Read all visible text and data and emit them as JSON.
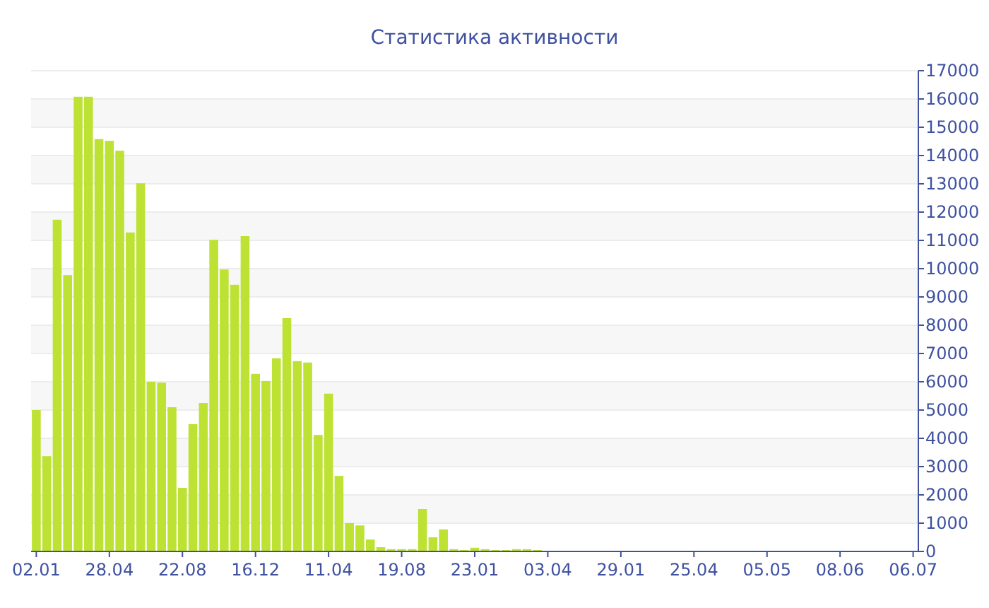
{
  "chart_data": {
    "type": "bar",
    "title": "Статистика активности",
    "categories": [
      "02.01",
      null,
      null,
      null,
      null,
      null,
      null,
      "28.04",
      null,
      null,
      null,
      null,
      null,
      null,
      "22.08",
      null,
      null,
      null,
      null,
      null,
      null,
      "16.12",
      null,
      null,
      null,
      null,
      null,
      null,
      "11.04",
      null,
      null,
      null,
      null,
      null,
      null,
      "19.08",
      null,
      null,
      null,
      null,
      null,
      null,
      "23.01",
      null,
      null,
      null,
      null,
      null,
      null,
      "03.04",
      null,
      null,
      null,
      null,
      null,
      null,
      "29.01",
      null,
      null,
      null,
      null,
      null,
      null,
      "25.04",
      null,
      null,
      null,
      null,
      null,
      null,
      "05.05",
      null,
      null,
      null,
      null,
      null,
      null,
      "08.06",
      null,
      null,
      null,
      null,
      null,
      null,
      "06.07"
    ],
    "values": [
      5000,
      3370,
      11730,
      9770,
      16080,
      16080,
      14580,
      14520,
      14170,
      11280,
      13020,
      6000,
      5970,
      5100,
      2250,
      4500,
      5250,
      11020,
      9970,
      9430,
      11150,
      6280,
      6030,
      6830,
      8250,
      6730,
      6680,
      4120,
      5580,
      2670,
      1000,
      920,
      420,
      150,
      80,
      80,
      80,
      1500,
      500,
      780,
      80,
      50,
      130,
      80,
      50,
      50,
      80,
      80,
      50,
      20,
      20,
      20,
      20,
      20,
      20,
      20,
      20,
      10,
      10,
      10,
      10,
      10,
      10,
      10,
      10,
      10,
      10,
      10,
      10,
      10,
      10,
      10,
      10,
      10,
      10,
      10,
      10,
      10,
      10,
      10,
      10,
      10,
      10,
      10,
      10
    ],
    "color": "#bde233",
    "ylim": [
      0,
      17000
    ],
    "yticks": [
      0,
      1000,
      2000,
      3000,
      4000,
      5000,
      6000,
      7000,
      8000,
      9000,
      10000,
      11000,
      12000,
      13000,
      14000,
      15000,
      16000,
      17000
    ],
    "grid": "y"
  }
}
